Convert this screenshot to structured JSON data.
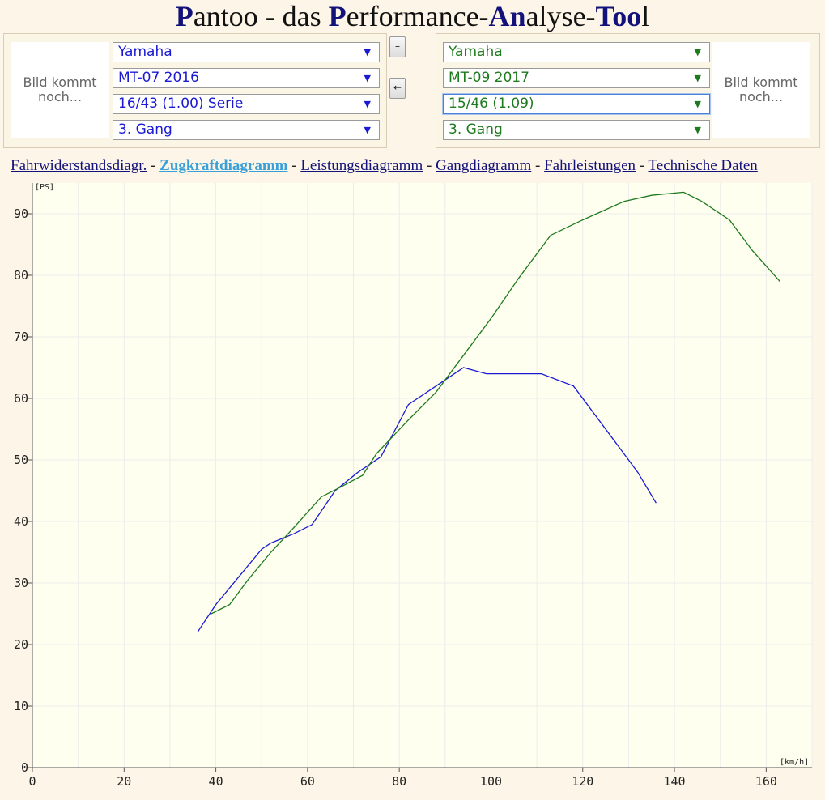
{
  "header": {
    "t1": "P",
    "t2": "antoo",
    "t3": " - das ",
    "t4": "P",
    "t5": "erformance-",
    "t6": "An",
    "t7": "alyse-",
    "t8": "Too",
    "t9": "l"
  },
  "left": {
    "image_text": "Bild kommt noch...",
    "brand": "Yamaha",
    "model": "MT-07 2016",
    "ratio": "16/43 (1.00) Serie",
    "gear": "3. Gang",
    "color": "#1a1ad4"
  },
  "right": {
    "image_text": "Bild kommt noch...",
    "brand": "Yamaha",
    "model": "MT-09 2017",
    "ratio": "15/46 (1.09)",
    "gear": "3. Gang",
    "color": "#1d7a1d"
  },
  "buttons": {
    "minus": "–",
    "back": "←"
  },
  "nav": {
    "items": [
      "Fahrwiderstandsdiagr.",
      "Zugkraftdiagramm",
      "Leistungsdiagramm",
      "Gangdiagramm",
      "Fahrleistungen",
      "Technische Daten"
    ],
    "separator": " - ",
    "active": 1
  },
  "chart_data": {
    "type": "line",
    "ylabel": "[PS]",
    "xlabel": "[km/h]",
    "xlim": [
      0,
      170
    ],
    "ylim": [
      0,
      95
    ],
    "xticks": [
      0,
      20,
      40,
      60,
      80,
      100,
      120,
      140,
      160
    ],
    "yticks": [
      0,
      10,
      20,
      30,
      40,
      50,
      60,
      70,
      80,
      90
    ],
    "grid": true,
    "series": [
      {
        "color": "#1a1ad4",
        "x": [
          36,
          40,
          45,
          50,
          52,
          57,
          61,
          66,
          71,
          76,
          82,
          88,
          94,
          99,
          105,
          111,
          118,
          122,
          127,
          132,
          136
        ],
        "y": [
          22,
          26.5,
          31,
          35.5,
          36.5,
          38,
          39.5,
          45,
          48,
          50.5,
          59,
          62,
          65,
          64,
          64,
          64,
          62,
          58,
          53,
          48,
          43
        ]
      },
      {
        "color": "#1d7a1d",
        "x": [
          39,
          43,
          47,
          52,
          57,
          63,
          67,
          72,
          75,
          82,
          88,
          94,
          100,
          106,
          113,
          120,
          129,
          135,
          142,
          146,
          152,
          157,
          163
        ],
        "y": [
          25,
          26.5,
          30.5,
          35,
          39,
          44,
          45.5,
          47.5,
          51,
          56.5,
          61,
          67,
          73,
          79.5,
          86.5,
          89,
          92,
          93,
          93.5,
          92,
          89,
          84,
          79
        ]
      }
    ]
  }
}
